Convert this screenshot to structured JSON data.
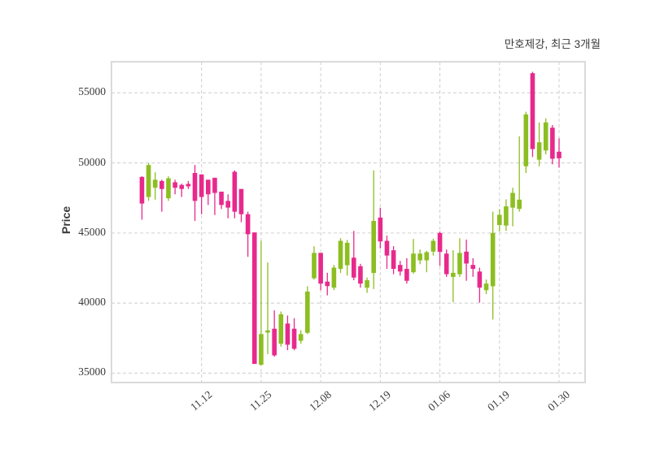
{
  "title": "만호제강, 최근 3개월",
  "chart_data": {
    "type": "candlestick",
    "title": "만호제강, 최근 3개월",
    "ylabel": "Price",
    "xlabel": "",
    "grid": true,
    "grid_style": "dashed",
    "legend": "none",
    "y_ticks": [
      55000,
      50000,
      45000,
      40000,
      35000
    ],
    "y_range": [
      34330,
      57220
    ],
    "x_tick_labels": [
      "11.12",
      "11.25",
      "12.08",
      "12.19",
      "01.06",
      "01.19",
      "01.30"
    ],
    "x_tick_indices": [
      9,
      18,
      27,
      36,
      45,
      54,
      63
    ],
    "x_range": [
      -4.6,
      66.93
    ],
    "colors": {
      "increasing": "#8cbe22",
      "decreasing": "#e8298c",
      "grid": "#d2d2d2",
      "border": "#dadada",
      "plot_bg": "#ffffff",
      "page_bg": "#ffffff",
      "tick_label": "#3a3a3a",
      "title_text": "#3b3b3b"
    },
    "candles_format": [
      "open",
      "high",
      "low",
      "close"
    ],
    "candles": [
      [
        49000,
        49050,
        45950,
        47100
      ],
      [
        47570,
        49990,
        47300,
        49850
      ],
      [
        48230,
        49330,
        47380,
        48800
      ],
      [
        48710,
        48800,
        46520,
        48140
      ],
      [
        47480,
        49050,
        47290,
        48900
      ],
      [
        48620,
        48800,
        47760,
        48230
      ],
      [
        48430,
        48520,
        47570,
        48140
      ],
      [
        48500,
        48710,
        48140,
        48330
      ],
      [
        49280,
        49850,
        45860,
        47290
      ],
      [
        49180,
        49180,
        46340,
        47570
      ],
      [
        48800,
        48800,
        47000,
        47760
      ],
      [
        48940,
        48940,
        46280,
        47860
      ],
      [
        47950,
        47950,
        46710,
        47000
      ],
      [
        47290,
        47760,
        46050,
        46810
      ],
      [
        49370,
        49470,
        46050,
        46520
      ],
      [
        48140,
        48140,
        45770,
        46340
      ],
      [
        46340,
        46520,
        43300,
        44910
      ],
      [
        45040,
        45040,
        35660,
        35660
      ],
      [
        35600,
        44440,
        35540,
        37790
      ],
      [
        37900,
        42900,
        36360,
        38050
      ],
      [
        38170,
        39480,
        36170,
        36270
      ],
      [
        37100,
        39400,
        36900,
        39200
      ],
      [
        38540,
        39110,
        36640,
        37030
      ],
      [
        38170,
        38920,
        36640,
        36740
      ],
      [
        37310,
        38070,
        37100,
        37790
      ],
      [
        37880,
        41200,
        37790,
        40820
      ],
      [
        41770,
        44050,
        41680,
        43580
      ],
      [
        43580,
        43580,
        40920,
        41390
      ],
      [
        41530,
        42160,
        40550,
        41210
      ],
      [
        41100,
        42720,
        40920,
        42530
      ],
      [
        42440,
        44630,
        42150,
        44440
      ],
      [
        42700,
        44500,
        41960,
        44300
      ],
      [
        43240,
        45150,
        41630,
        41820
      ],
      [
        42630,
        42800,
        41100,
        41390
      ],
      [
        41100,
        41820,
        40730,
        41630
      ],
      [
        42150,
        49470,
        41000,
        45860
      ],
      [
        46100,
        46800,
        43900,
        44400
      ],
      [
        44440,
        44810,
        42440,
        43390
      ],
      [
        43770,
        44060,
        42060,
        42440
      ],
      [
        42720,
        43010,
        41960,
        42250
      ],
      [
        42440,
        43200,
        41390,
        41590
      ],
      [
        42200,
        44580,
        42100,
        43530
      ],
      [
        43050,
        43820,
        42770,
        43530
      ],
      [
        43050,
        43730,
        42200,
        43630
      ],
      [
        43670,
        44600,
        43390,
        44440
      ],
      [
        45000,
        45100,
        42650,
        43650
      ],
      [
        43530,
        43820,
        41870,
        42060
      ],
      [
        41870,
        43770,
        40070,
        42160
      ],
      [
        42060,
        44630,
        41870,
        43580
      ],
      [
        43670,
        44530,
        41590,
        42820
      ],
      [
        42720,
        43200,
        41870,
        42440
      ],
      [
        42250,
        42530,
        40030,
        41100
      ],
      [
        40920,
        41680,
        40640,
        41390
      ],
      [
        41200,
        46520,
        38830,
        45010
      ],
      [
        45570,
        46700,
        45100,
        46300
      ],
      [
        45530,
        47400,
        45150,
        46900
      ],
      [
        46810,
        48230,
        45480,
        47860
      ],
      [
        46720,
        51900,
        46520,
        47380
      ],
      [
        49760,
        53650,
        49280,
        53460
      ],
      [
        56400,
        56500,
        50420,
        50990
      ],
      [
        50230,
        52890,
        49760,
        51470
      ],
      [
        50890,
        53180,
        50610,
        52890
      ],
      [
        52510,
        52700,
        49900,
        50300
      ],
      [
        50800,
        51760,
        49660,
        50330
      ]
    ]
  }
}
